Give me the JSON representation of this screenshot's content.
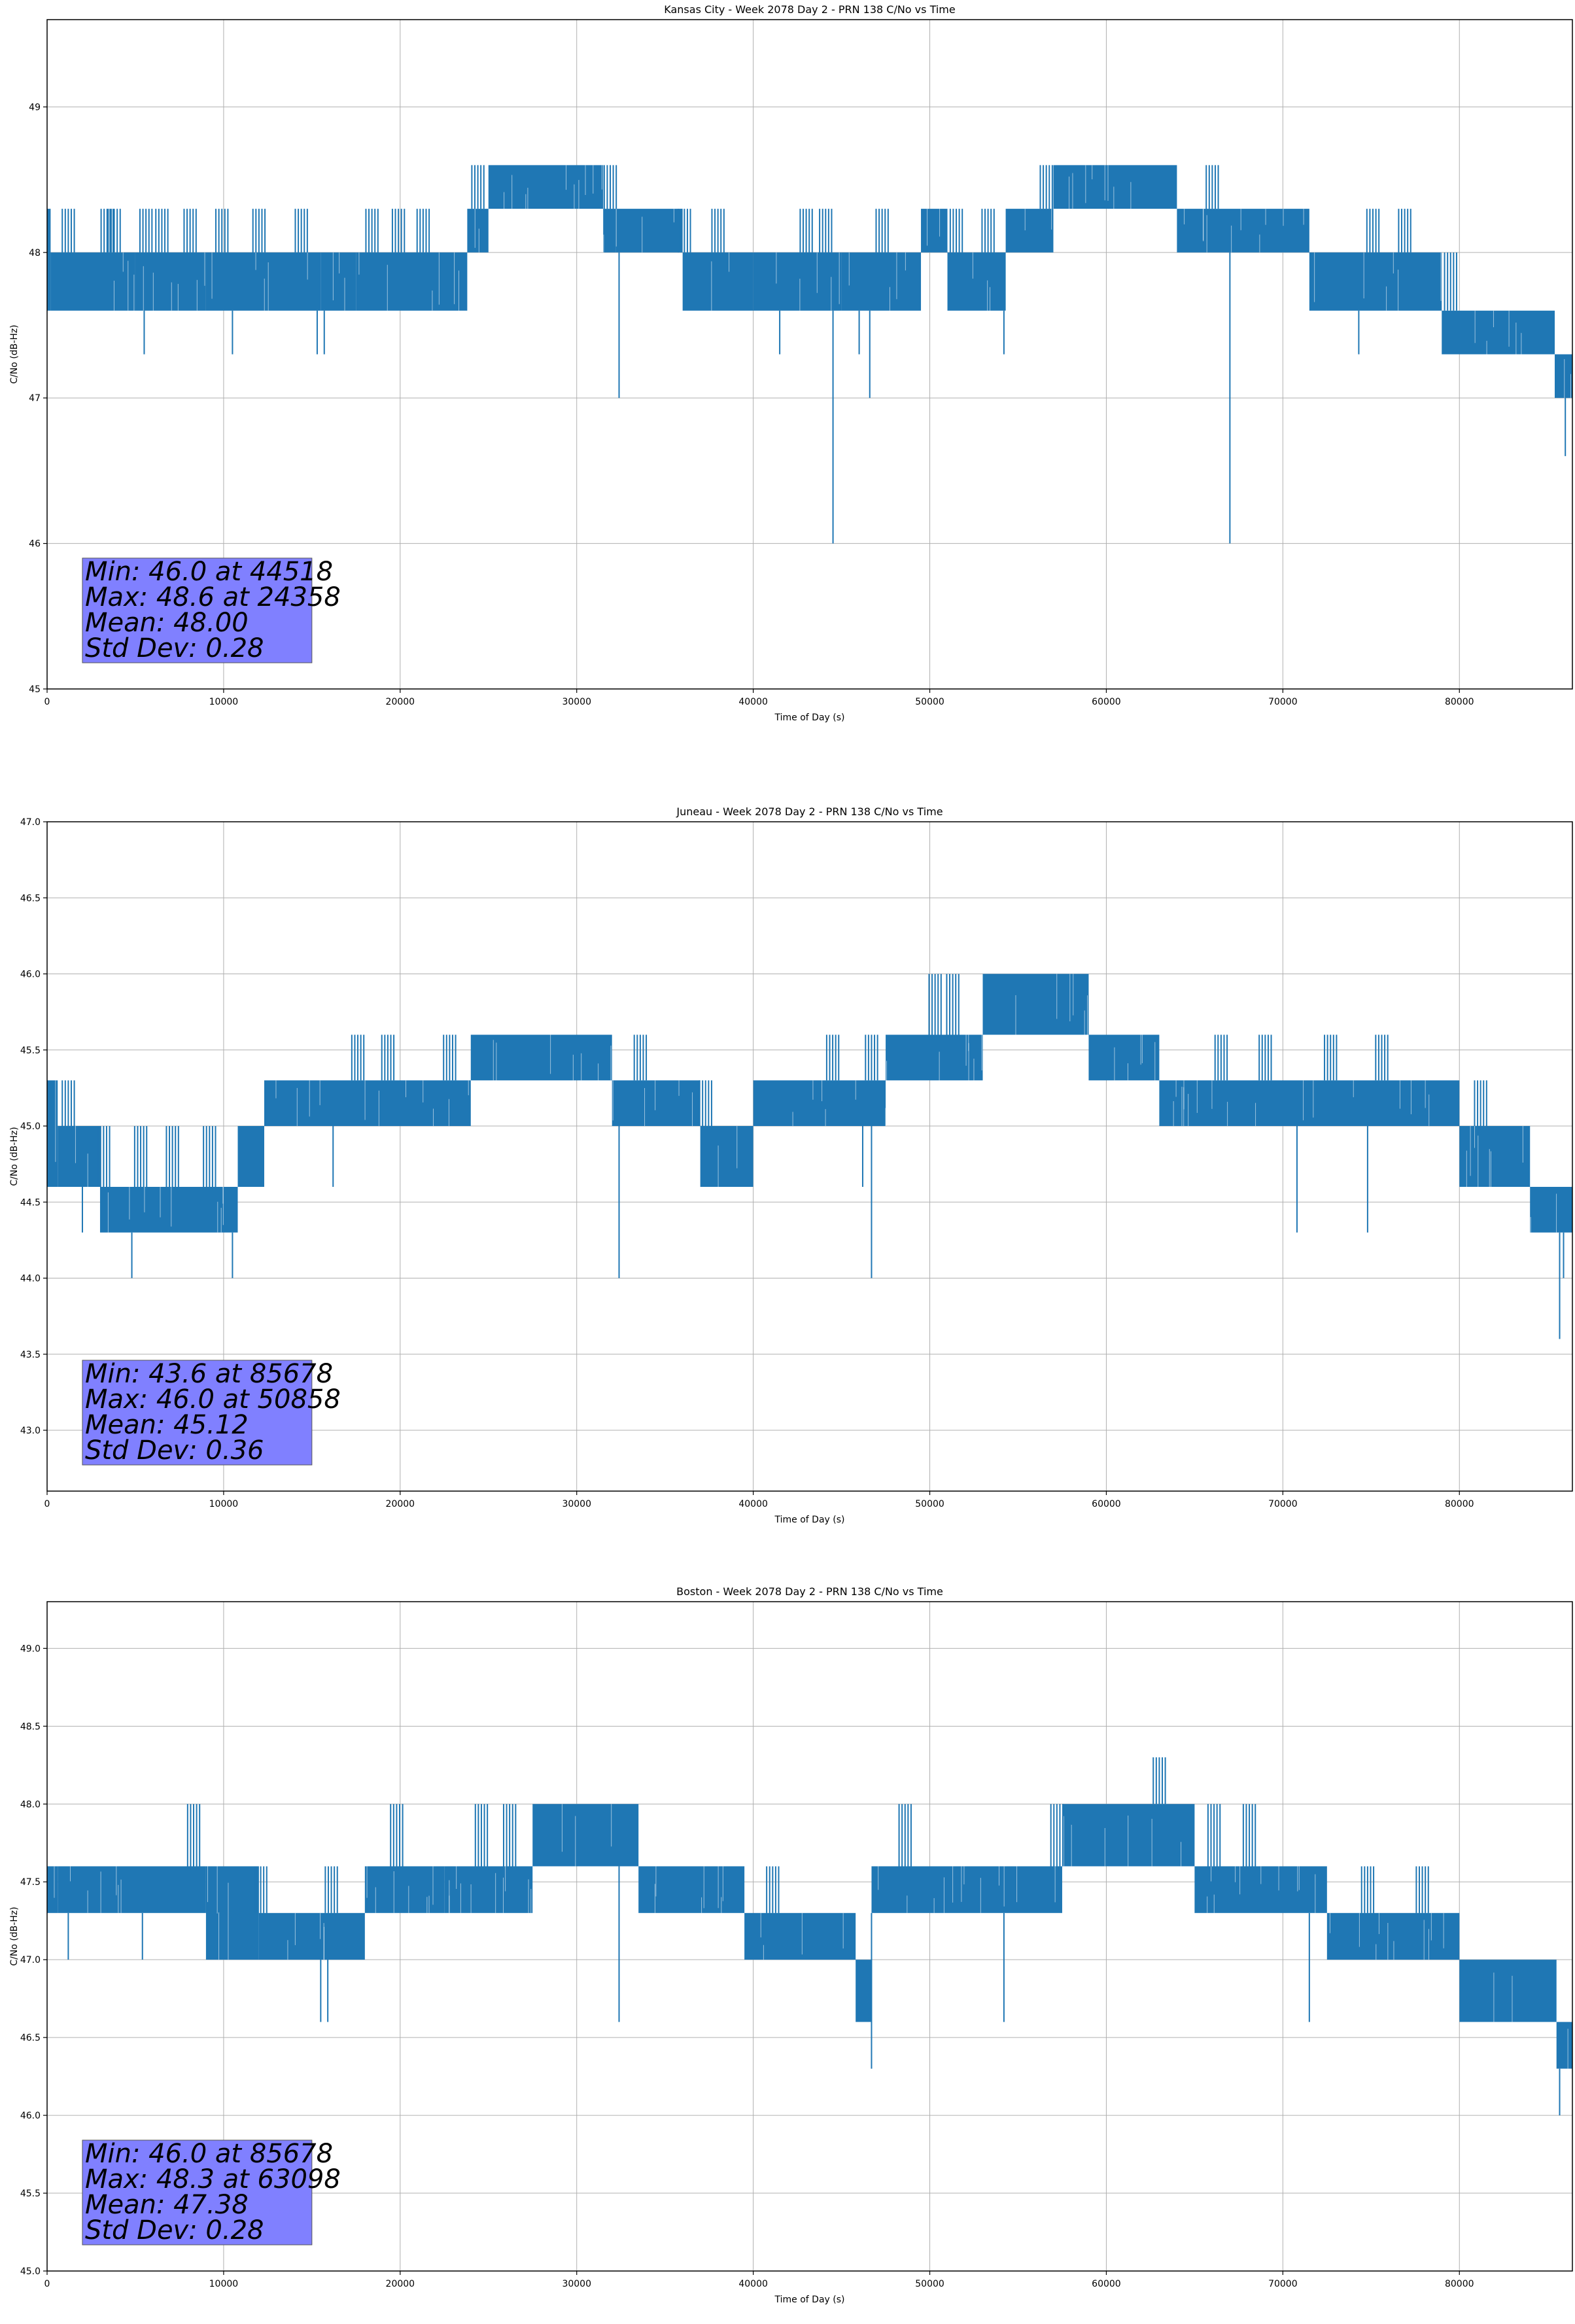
{
  "chart_data": [
    {
      "type": "line",
      "title": "Kansas City - Week 2078 Day 2 - PRN 138 C/No vs Time",
      "xlabel": "Time of Day (s)",
      "ylabel": "C/No (dB-Hz)",
      "xlim": [
        0,
        86400
      ],
      "ylim": [
        45.0,
        49.6
      ],
      "grid": true,
      "xticks": [
        0,
        10000,
        20000,
        30000,
        40000,
        50000,
        60000,
        70000,
        80000
      ],
      "xtick_labels": [
        "0",
        "10000",
        "20000",
        "30000",
        "40000",
        "50000",
        "60000",
        "70000",
        "80000"
      ],
      "yticks": [
        45,
        46,
        47,
        48,
        49
      ],
      "ytick_labels": [
        "45",
        "46",
        "47",
        "48",
        "49"
      ],
      "series": [
        {
          "name": "C/No",
          "color": "#1f77b4",
          "bands": [
            {
              "x0": 0,
              "x1": 200,
              "lo": 47.6,
              "hi": 48.3
            },
            {
              "x0": 200,
              "x1": 5000,
              "lo": 47.6,
              "hi": 48.0
            },
            {
              "x0": 5000,
              "x1": 9000,
              "lo": 47.6,
              "hi": 48.0
            },
            {
              "x0": 9000,
              "x1": 15500,
              "lo": 47.6,
              "hi": 48.0
            },
            {
              "x0": 15500,
              "x1": 17500,
              "lo": 47.6,
              "hi": 48.0
            },
            {
              "x0": 17500,
              "x1": 23800,
              "lo": 47.6,
              "hi": 48.0
            },
            {
              "x0": 23800,
              "x1": 25000,
              "lo": 48.0,
              "hi": 48.3
            },
            {
              "x0": 25000,
              "x1": 31500,
              "lo": 48.3,
              "hi": 48.6
            },
            {
              "x0": 31500,
              "x1": 32200,
              "lo": 48.0,
              "hi": 48.3
            },
            {
              "x0": 32200,
              "x1": 36000,
              "lo": 48.0,
              "hi": 48.3
            },
            {
              "x0": 36000,
              "x1": 40000,
              "lo": 47.6,
              "hi": 48.0
            },
            {
              "x0": 40000,
              "x1": 45000,
              "lo": 47.6,
              "hi": 48.0
            },
            {
              "x0": 45000,
              "x1": 49500,
              "lo": 47.6,
              "hi": 48.0
            },
            {
              "x0": 49500,
              "x1": 51000,
              "lo": 48.0,
              "hi": 48.3
            },
            {
              "x0": 51000,
              "x1": 54300,
              "lo": 47.6,
              "hi": 48.0
            },
            {
              "x0": 54300,
              "x1": 57000,
              "lo": 48.0,
              "hi": 48.3
            },
            {
              "x0": 57000,
              "x1": 64000,
              "lo": 48.3,
              "hi": 48.6
            },
            {
              "x0": 64000,
              "x1": 71500,
              "lo": 48.0,
              "hi": 48.3
            },
            {
              "x0": 71500,
              "x1": 79000,
              "lo": 47.6,
              "hi": 48.0
            },
            {
              "x0": 79000,
              "x1": 85400,
              "lo": 47.3,
              "hi": 47.6
            },
            {
              "x0": 85400,
              "x1": 86400,
              "lo": 47.0,
              "hi": 47.3
            }
          ],
          "upper_ticks": [
            1200,
            3400,
            3800,
            5600,
            6500,
            8100,
            9900,
            12000,
            14400,
            18400,
            19900,
            21300,
            24400,
            26100,
            28000,
            30000,
            31900,
            33400,
            36100,
            38000,
            43000,
            44100,
            47300,
            49800,
            51500,
            53300,
            56600,
            57500,
            60000,
            61900,
            66000,
            67500,
            69300,
            70600,
            75100,
            76900,
            79500
          ],
          "upper_tick_levels": [
            48.3,
            48.3,
            48.3,
            48.3,
            48.3,
            48.3,
            48.3,
            48.3,
            48.3,
            48.3,
            48.3,
            48.3,
            48.6,
            48.6,
            48.6,
            48.6,
            48.6,
            48.3,
            48.3,
            48.3,
            48.3,
            48.3,
            48.3,
            48.3,
            48.3,
            48.3,
            48.6,
            48.6,
            48.6,
            48.6,
            48.6,
            48.3,
            48.3,
            48.3,
            48.3,
            48.3,
            48.0
          ],
          "dips": [
            {
              "x": 5500,
              "y": 47.3
            },
            {
              "x": 10500,
              "y": 47.3
            },
            {
              "x": 15300,
              "y": 47.3
            },
            {
              "x": 15700,
              "y": 47.3
            },
            {
              "x": 32400,
              "y": 47.0
            },
            {
              "x": 41500,
              "y": 47.3
            },
            {
              "x": 44518,
              "y": 46.0
            },
            {
              "x": 46000,
              "y": 47.3
            },
            {
              "x": 46600,
              "y": 47.0
            },
            {
              "x": 54200,
              "y": 47.3
            },
            {
              "x": 67000,
              "y": 46.0
            },
            {
              "x": 74300,
              "y": 47.3
            },
            {
              "x": 86000,
              "y": 46.6
            }
          ]
        }
      ],
      "annotation": [
        "Min: 46.0 at 44518",
        "Max: 48.6 at 24358",
        "Mean: 48.00",
        "Std Dev: 0.28"
      ],
      "annotation_color": "#8080ff"
    },
    {
      "type": "line",
      "title": "Juneau - Week 2078 Day 2 - PRN 138 C/No vs Time",
      "xlabel": "Time of Day (s)",
      "ylabel": "C/No (dB-Hz)",
      "xlim": [
        0,
        86400
      ],
      "ylim": [
        42.6,
        47.0
      ],
      "grid": true,
      "xticks": [
        0,
        10000,
        20000,
        30000,
        40000,
        50000,
        60000,
        70000,
        80000
      ],
      "xtick_labels": [
        "0",
        "10000",
        "20000",
        "30000",
        "40000",
        "50000",
        "60000",
        "70000",
        "80000"
      ],
      "yticks": [
        43.0,
        43.5,
        44.0,
        44.5,
        45.0,
        45.5,
        46.0,
        46.5,
        47.0
      ],
      "ytick_labels": [
        "43.0",
        "43.5",
        "44.0",
        "44.5",
        "45.0",
        "45.5",
        "46.0",
        "46.5",
        "47.0"
      ],
      "series": [
        {
          "name": "C/No",
          "color": "#1f77b4",
          "bands": [
            {
              "x0": 0,
              "x1": 600,
              "lo": 44.6,
              "hi": 45.3
            },
            {
              "x0": 600,
              "x1": 3000,
              "lo": 44.6,
              "hi": 45.0
            },
            {
              "x0": 3000,
              "x1": 10800,
              "lo": 44.3,
              "hi": 44.6
            },
            {
              "x0": 10800,
              "x1": 12300,
              "lo": 44.6,
              "hi": 45.0
            },
            {
              "x0": 12300,
              "x1": 24000,
              "lo": 45.0,
              "hi": 45.3
            },
            {
              "x0": 24000,
              "x1": 32000,
              "lo": 45.3,
              "hi": 45.6
            },
            {
              "x0": 32000,
              "x1": 37000,
              "lo": 45.0,
              "hi": 45.3
            },
            {
              "x0": 37000,
              "x1": 40000,
              "lo": 44.6,
              "hi": 45.0
            },
            {
              "x0": 40000,
              "x1": 47500,
              "lo": 45.0,
              "hi": 45.3
            },
            {
              "x0": 47500,
              "x1": 53000,
              "lo": 45.3,
              "hi": 45.6
            },
            {
              "x0": 53000,
              "x1": 59000,
              "lo": 45.6,
              "hi": 46.0
            },
            {
              "x0": 59000,
              "x1": 63000,
              "lo": 45.3,
              "hi": 45.6
            },
            {
              "x0": 63000,
              "x1": 80000,
              "lo": 45.0,
              "hi": 45.3
            },
            {
              "x0": 80000,
              "x1": 84000,
              "lo": 44.6,
              "hi": 45.0
            },
            {
              "x0": 84000,
              "x1": 86400,
              "lo": 44.3,
              "hi": 44.6
            }
          ],
          "upper_ticks": [
            1200,
            3200,
            5300,
            7100,
            9200,
            11800,
            14800,
            17600,
            19300,
            22800,
            26600,
            29000,
            31300,
            33600,
            37300,
            44500,
            46700,
            50300,
            51300,
            55100,
            57900,
            66500,
            69000,
            72700,
            75600,
            78900,
            81200,
            83900
          ],
          "upper_tick_levels": [
            45.3,
            45.0,
            45.0,
            45.0,
            45.0,
            45.0,
            45.3,
            45.6,
            45.6,
            45.6,
            45.6,
            45.6,
            45.6,
            45.6,
            45.3,
            45.6,
            45.6,
            46.0,
            46.0,
            46.0,
            46.0,
            45.6,
            45.6,
            45.6,
            45.6,
            45.3,
            45.3,
            45.0
          ],
          "dips": [
            {
              "x": 2000,
              "y": 44.3
            },
            {
              "x": 4800,
              "y": 44.0
            },
            {
              "x": 10500,
              "y": 44.0
            },
            {
              "x": 16200,
              "y": 44.6
            },
            {
              "x": 32400,
              "y": 44.0
            },
            {
              "x": 38500,
              "y": 44.6
            },
            {
              "x": 46200,
              "y": 44.6
            },
            {
              "x": 46700,
              "y": 44.0
            },
            {
              "x": 70800,
              "y": 44.3
            },
            {
              "x": 74800,
              "y": 44.3
            },
            {
              "x": 85678,
              "y": 43.6
            },
            {
              "x": 85900,
              "y": 44.0
            }
          ]
        }
      ],
      "annotation": [
        "Min: 43.6 at 85678",
        "Max: 46.0 at 50858",
        "Mean: 45.12",
        "Std Dev: 0.36"
      ],
      "annotation_color": "#8080ff"
    },
    {
      "type": "line",
      "title": "Boston - Week 2078 Day 2 - PRN 138 C/No vs Time",
      "xlabel": "Time of Day (s)",
      "ylabel": "C/No (dB-Hz)",
      "xlim": [
        0,
        86400
      ],
      "ylim": [
        45.0,
        49.3
      ],
      "grid": true,
      "xticks": [
        0,
        10000,
        20000,
        30000,
        40000,
        50000,
        60000,
        70000,
        80000
      ],
      "xtick_labels": [
        "0",
        "10000",
        "20000",
        "30000",
        "40000",
        "50000",
        "60000",
        "70000",
        "80000"
      ],
      "yticks": [
        45.0,
        45.5,
        46.0,
        46.5,
        47.0,
        47.5,
        48.0,
        48.5,
        49.0
      ],
      "ytick_labels": [
        "45.0",
        "45.5",
        "46.0",
        "46.5",
        "47.0",
        "47.5",
        "48.0",
        "48.5",
        "49.0"
      ],
      "series": [
        {
          "name": "C/No",
          "color": "#1f77b4",
          "bands": [
            {
              "x0": 0,
              "x1": 600,
              "lo": 47.3,
              "hi": 47.6
            },
            {
              "x0": 600,
              "x1": 9000,
              "lo": 47.3,
              "hi": 47.6
            },
            {
              "x0": 9000,
              "x1": 12000,
              "lo": 47.0,
              "hi": 47.6
            },
            {
              "x0": 12000,
              "x1": 18000,
              "lo": 47.0,
              "hi": 47.3
            },
            {
              "x0": 18000,
              "x1": 22500,
              "lo": 47.3,
              "hi": 47.6
            },
            {
              "x0": 22500,
              "x1": 27500,
              "lo": 47.3,
              "hi": 47.6
            },
            {
              "x0": 27500,
              "x1": 33500,
              "lo": 47.6,
              "hi": 48.0
            },
            {
              "x0": 33500,
              "x1": 39500,
              "lo": 47.3,
              "hi": 47.6
            },
            {
              "x0": 39500,
              "x1": 45800,
              "lo": 47.0,
              "hi": 47.3
            },
            {
              "x0": 45800,
              "x1": 46700,
              "lo": 46.6,
              "hi": 47.0
            },
            {
              "x0": 46700,
              "x1": 55000,
              "lo": 47.3,
              "hi": 47.6
            },
            {
              "x0": 55000,
              "x1": 57500,
              "lo": 47.3,
              "hi": 47.6
            },
            {
              "x0": 57500,
              "x1": 65000,
              "lo": 47.6,
              "hi": 48.0
            },
            {
              "x0": 65000,
              "x1": 72500,
              "lo": 47.3,
              "hi": 47.6
            },
            {
              "x0": 72500,
              "x1": 80000,
              "lo": 47.0,
              "hi": 47.3
            },
            {
              "x0": 80000,
              "x1": 85500,
              "lo": 46.6,
              "hi": 47.0
            },
            {
              "x0": 85500,
              "x1": 86400,
              "lo": 46.3,
              "hi": 46.6
            }
          ],
          "upper_ticks": [
            2000,
            8300,
            12100,
            16100,
            19800,
            24600,
            26200,
            28900,
            30900,
            32000,
            38600,
            41100,
            47600,
            48600,
            50500,
            53400,
            57200,
            60700,
            63000,
            66100,
            68100,
            70200,
            74800,
            77900,
            79900
          ],
          "upper_tick_levels": [
            47.6,
            48.0,
            47.6,
            47.6,
            48.0,
            48.0,
            48.0,
            48.0,
            48.0,
            48.0,
            47.6,
            47.6,
            47.6,
            48.0,
            47.6,
            47.6,
            48.0,
            48.0,
            48.3,
            48.0,
            48.0,
            47.6,
            47.6,
            47.6,
            47.3
          ],
          "dips": [
            {
              "x": 1200,
              "y": 47.0
            },
            {
              "x": 5400,
              "y": 47.0
            },
            {
              "x": 15500,
              "y": 46.6
            },
            {
              "x": 15900,
              "y": 46.6
            },
            {
              "x": 32400,
              "y": 46.6
            },
            {
              "x": 46700,
              "y": 46.3
            },
            {
              "x": 54200,
              "y": 46.6
            },
            {
              "x": 71500,
              "y": 46.6
            },
            {
              "x": 85678,
              "y": 46.0
            },
            {
              "x": 85900,
              "y": 46.3
            }
          ]
        }
      ],
      "annotation": [
        "Min: 46.0 at 85678",
        "Max: 48.3 at 63098",
        "Mean: 47.38",
        "Std Dev: 0.28"
      ],
      "annotation_color": "#8080ff"
    }
  ]
}
